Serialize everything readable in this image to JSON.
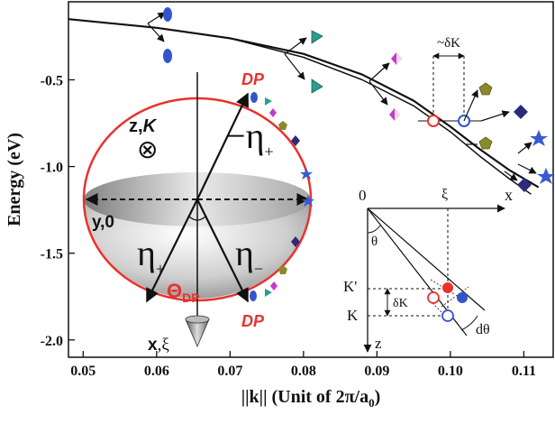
{
  "chart_data": {
    "type": "line",
    "xlabel": "||k|| (Unit of 2π/a",
    "xlabel_sub": "0",
    "xlabel_close": ")",
    "ylabel": "Energy (eV)",
    "xlim": [
      0.048,
      0.114
    ],
    "ylim": [
      -2.1,
      -0.05
    ],
    "x_ticks": [
      0.05,
      0.06,
      0.07,
      0.08,
      0.09,
      0.1,
      0.11
    ],
    "x_tick_labels": [
      "0.05",
      "0.06",
      "0.07",
      "0.08",
      "0.09",
      "0.10",
      "0.11"
    ],
    "y_ticks": [
      -0.5,
      -1.0,
      -1.5,
      -2.0
    ],
    "y_tick_labels": [
      "-0.5",
      "-1.0",
      "-1.5",
      "-2.0"
    ],
    "series": [
      {
        "x": [
          0.048,
          0.06,
          0.07,
          0.08,
          0.088,
          0.095,
          0.1,
          0.104,
          0.108,
          0.112
        ],
        "y": [
          -0.15,
          -0.2,
          -0.26,
          -0.35,
          -0.47,
          -0.62,
          -0.77,
          -0.9,
          -1.02,
          -1.12
        ]
      },
      {
        "x": [
          0.07,
          0.08,
          0.088,
          0.095,
          0.1,
          0.104,
          0.108,
          0.111
        ],
        "y": [
          -0.26,
          -0.37,
          -0.5,
          -0.65,
          -0.8,
          -0.94,
          -1.07,
          -1.16
        ]
      }
    ],
    "annotations": {
      "delta_k": "~δK",
      "dp_top": "DP",
      "dp_bottom": "DP",
      "zK_prefix": "z,",
      "zK_italic": "K",
      "otimes": "⊗",
      "y0": "y,0",
      "x_label": "x",
      "xi_sym": ",ξ",
      "neg_eta_sign": "−",
      "eta_sym": "η",
      "eta_sub_plus": "+",
      "eta_sub_minus": "−",
      "theta_dp": "Θ",
      "theta_dp_sub": "DP",
      "inset_origin": "0",
      "inset_xi": "ξ",
      "inset_x": "x",
      "inset_theta": "θ",
      "inset_kprime": "K'",
      "inset_k": "K",
      "inset_dk": "δK",
      "inset_dtheta": "dθ",
      "inset_z": "z"
    },
    "colors": {
      "red": "#e8322e",
      "blue_ellipse": "#3355cc",
      "teal_triangle": "#2a9d8f",
      "magenta_diamond": "#c43ac4",
      "olive_pentagon": "#8a8a2a",
      "navy_diamond": "#2b2b7a",
      "blue_star": "#3a5bd0"
    }
  }
}
